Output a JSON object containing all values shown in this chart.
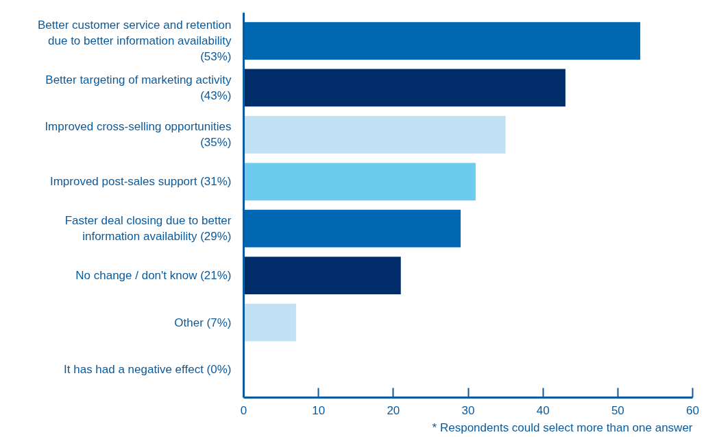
{
  "chart_data": {
    "type": "bar",
    "orientation": "horizontal",
    "categories": [
      "Better customer service and retention\ndue to better information availability\n(53%)",
      "Better targeting of marketing activity\n(43%)",
      "Improved cross-selling opportunities\n(35%)",
      "Improved post-sales support (31%)",
      "Faster deal closing due to better\ninformation availability (29%)",
      "No change / don't know (21%)",
      "Other (7%)",
      "It has had a negative effect (0%)"
    ],
    "values": [
      53,
      43,
      35,
      31,
      29,
      21,
      7,
      0
    ],
    "colors": [
      "#0068b3",
      "#002d6a",
      "#c2e1f5",
      "#6ccbef",
      "#0068b3",
      "#002d6a",
      "#c2e1f5",
      "#6ccbef"
    ],
    "xlim": [
      0,
      60
    ],
    "xticks": [
      0,
      10,
      20,
      30,
      40,
      50,
      60
    ],
    "grid": false,
    "annotations": [
      "* Respondents could select more than one answer"
    ]
  }
}
